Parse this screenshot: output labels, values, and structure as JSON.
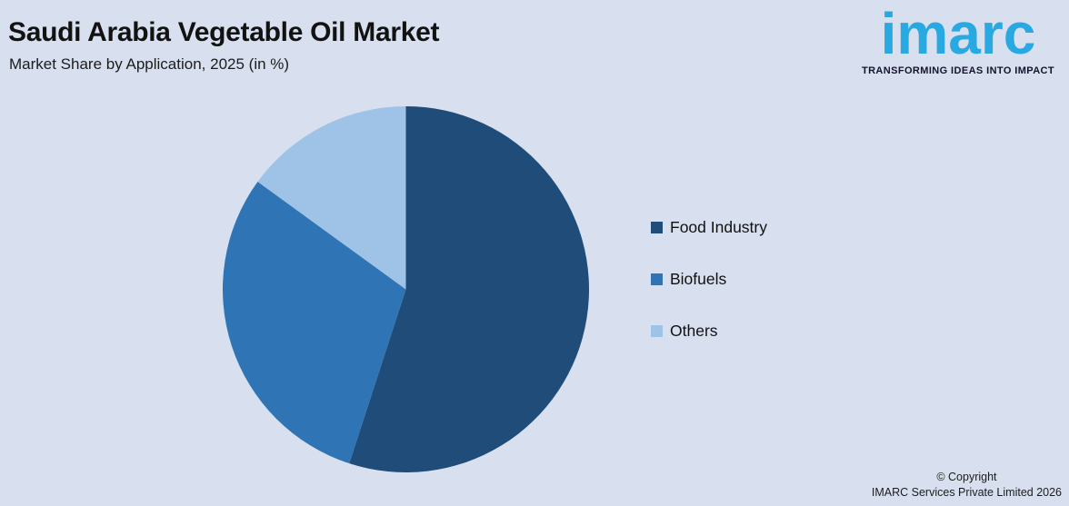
{
  "theme": {
    "background_color": "#D8E0EF",
    "text_color": "#121212",
    "brand_blue": "#29A9E1"
  },
  "header": {
    "title": "Saudi Arabia Vegetable Oil Market",
    "subtitle": "Market Share by Application, 2025 (in %)"
  },
  "logo": {
    "text": "imarc",
    "tagline": "TRANSFORMING IDEAS INTO IMPACT",
    "color": "#29A9E1"
  },
  "footer": {
    "line1": "© Copyright",
    "line2": "IMARC Services Private Limited 2026"
  },
  "chart_data": {
    "type": "pie",
    "title": "Saudi Arabia Vegetable Oil Market",
    "subtitle": "Market Share by Application, 2025 (in %)",
    "categories": [
      "Food Industry",
      "Biofuels",
      "Others"
    ],
    "values": [
      55,
      30,
      15
    ],
    "unit": "%",
    "colors": [
      "#1F4C78",
      "#2F74B5",
      "#9EC3E7"
    ],
    "start_angle_deg": 0,
    "direction": "clockwise",
    "legend_position": "right",
    "data_labels": false
  }
}
